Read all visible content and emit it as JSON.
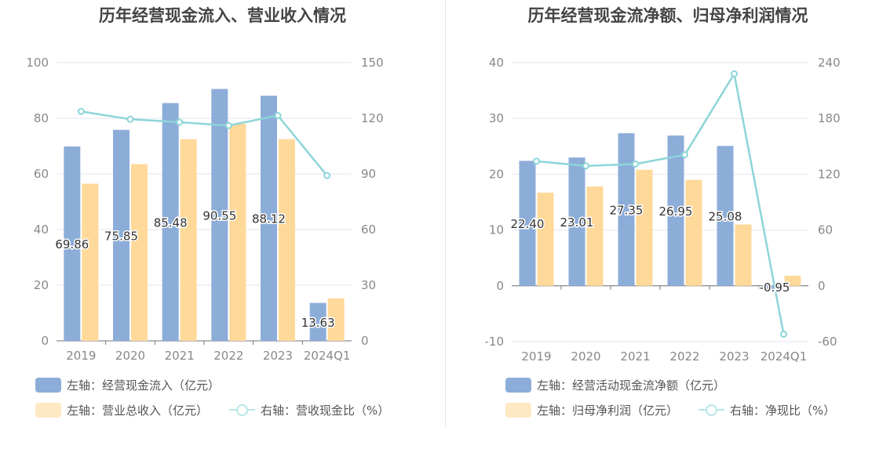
{
  "colors": {
    "bar_primary": "#8dadd9",
    "bar_secondary": "#ffd99a",
    "line": "#8dd5d8",
    "legend_secondary": "#ffe8c4",
    "legend_line": "#b5e6e8",
    "axis_text": "#888888",
    "grid": "#e3e6ef",
    "label_text": "#333333"
  },
  "chart_data": [
    {
      "type": "bar",
      "title": "历年经营现金流入、营业收入情况",
      "categories": [
        "2019",
        "2020",
        "2021",
        "2022",
        "2023",
        "2024Q1"
      ],
      "left_axis": {
        "ticks": [
          0,
          20,
          40,
          60,
          80,
          100
        ],
        "ylim": [
          0,
          100
        ]
      },
      "right_axis": {
        "ticks": [
          0,
          30,
          60,
          90,
          120,
          150
        ],
        "ylim": [
          0,
          150
        ]
      },
      "series": [
        {
          "name": "左轴：经营现金流入（亿元）",
          "type": "bar",
          "axis": "left",
          "values": [
            69.86,
            75.85,
            85.48,
            90.55,
            88.12,
            13.63
          ],
          "labels": [
            "69.86",
            "75.85",
            "85.48",
            "90.55",
            "88.12",
            "13.63"
          ]
        },
        {
          "name": "左轴：营业总收入（亿元）",
          "type": "bar",
          "axis": "left",
          "values": [
            56.5,
            63.5,
            72.5,
            78.0,
            72.5,
            15.3
          ]
        },
        {
          "name": "右轴：营收现金比（%）",
          "type": "line",
          "axis": "right",
          "values": [
            123.7,
            119.5,
            117.9,
            116.1,
            121.5,
            89.1
          ]
        }
      ]
    },
    {
      "type": "bar",
      "title": "历年经营现金流净额、归母净利润情况",
      "categories": [
        "2019",
        "2020",
        "2021",
        "2022",
        "2023",
        "2024Q1"
      ],
      "left_axis": {
        "ticks": [
          -10,
          0,
          10,
          20,
          30,
          40
        ],
        "ylim": [
          -10,
          40
        ]
      },
      "right_axis": {
        "ticks": [
          -60,
          0,
          60,
          120,
          180,
          240
        ],
        "ylim": [
          -60,
          240
        ]
      },
      "series": [
        {
          "name": "左轴：经营活动现金流净额（亿元）",
          "type": "bar",
          "axis": "left",
          "values": [
            22.4,
            23.01,
            27.35,
            26.95,
            25.08,
            -0.95
          ],
          "labels": [
            "22.40",
            "23.01",
            "27.35",
            "26.95",
            "25.08",
            "-0.95"
          ]
        },
        {
          "name": "左轴：归母净利润（亿元）",
          "type": "bar",
          "axis": "left",
          "values": [
            16.7,
            17.8,
            20.8,
            19.0,
            11.0,
            1.8
          ]
        },
        {
          "name": "右轴：净现比（%）",
          "type": "line",
          "axis": "right",
          "values": [
            134,
            129,
            131,
            141,
            228,
            -52
          ]
        }
      ]
    }
  ]
}
